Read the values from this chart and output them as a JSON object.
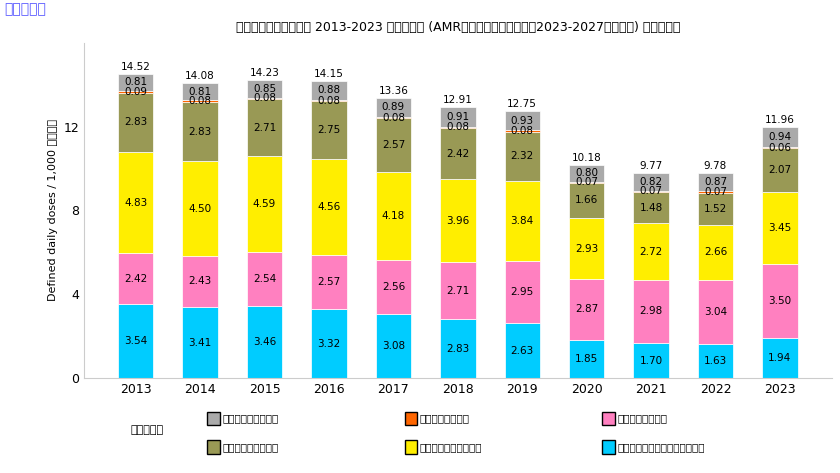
{
  "years": [
    "2013",
    "2014",
    "2015",
    "2016",
    "2017",
    "2018",
    "2019",
    "2020",
    "2021",
    "2022",
    "2023"
  ],
  "totals": [
    14.52,
    14.08,
    14.23,
    14.15,
    13.36,
    12.91,
    12.75,
    10.18,
    9.77,
    9.78,
    11.96
  ],
  "series": {
    "その他の注射抗菌薬": [
      0.81,
      0.81,
      0.85,
      0.88,
      0.89,
      0.91,
      0.93,
      0.8,
      0.82,
      0.87,
      0.94
    ],
    "注射カルバペネム": [
      0.09,
      0.08,
      0.08,
      0.08,
      0.08,
      0.08,
      0.08,
      0.07,
      0.07,
      0.07,
      0.06
    ],
    "内服マクロライド": [
      2.42,
      2.43,
      2.54,
      2.57,
      2.56,
      2.71,
      2.95,
      2.87,
      2.98,
      3.04,
      3.5
    ],
    "その他の内服抗菌薬": [
      2.83,
      2.83,
      2.71,
      2.75,
      2.57,
      2.42,
      2.32,
      1.66,
      1.48,
      1.52,
      2.07
    ],
    "内服フルオロキノロン": [
      4.83,
      4.5,
      4.59,
      4.56,
      4.18,
      3.96,
      3.84,
      2.93,
      2.72,
      2.66,
      3.45
    ],
    "内服第三世代セファロスポリン": [
      3.54,
      3.41,
      3.46,
      3.32,
      3.08,
      2.83,
      2.63,
      1.85,
      1.7,
      1.63,
      1.94
    ]
  },
  "colors": {
    "その他の注射抗菌薬": "#aaaaaa",
    "注射カルバペネム": "#ff6600",
    "内服マクロライド": "#ff80c0",
    "その他の内服抗菌薬": "#999955",
    "内服フルオロキノロン": "#ffee00",
    "内服第三世代セファロスポリン": "#00ccff"
  },
  "stack_order": [
    "内服第三世代セファロスポリン",
    "内服マクロライド",
    "内服フルオロキノロン",
    "その他の内服抗菌薬",
    "注射カルバペネム",
    "その他の注射抗菌薬"
  ],
  "title": "全国抗菌薬販売量推移 2013-2023 抗菌薬種類 (AMR対策アクションプラン2023-2027成果指標) による集計",
  "ylabel": "Defined daily doses / 1,000 住民／日",
  "top_label": "内服・注射",
  "ylim": [
    0,
    16
  ],
  "yticks": [
    0,
    4,
    8,
    12
  ],
  "legend_label": "抗菌薬系統",
  "background_color": "#ffffff",
  "title_fontsize": 9,
  "label_fontsize": 7.5
}
